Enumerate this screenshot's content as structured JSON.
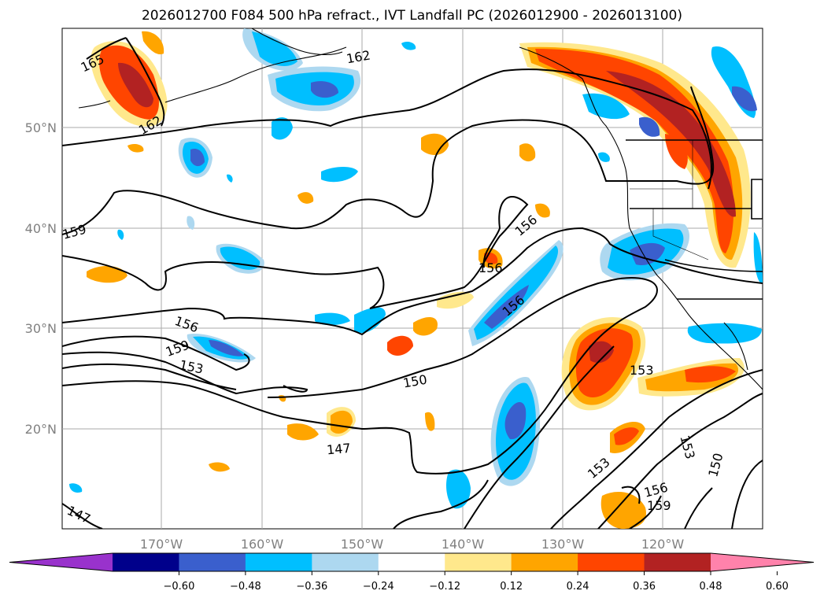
{
  "title": "2026012700 F084 500 hPa refract., IVT Landfall PC (2026012900 - 2026013100)",
  "lat_labels": [
    "50°N",
    "40°N",
    "30°N",
    "20°N"
  ],
  "lon_labels": [
    "170°W",
    "160°W",
    "150°W",
    "140°W",
    "130°W",
    "120°W"
  ],
  "contour_labels": [
    "165",
    "162",
    "162",
    "159",
    "156",
    "156",
    "156",
    "156",
    "159",
    "153",
    "150",
    "147",
    "153",
    "153",
    "153",
    "150",
    "156",
    "159",
    "147"
  ],
  "colorbar": {
    "ticks": [
      "−0.60",
      "−0.48",
      "−0.36",
      "−0.24",
      "−0.12",
      "0.12",
      "0.24",
      "0.36",
      "0.48",
      "0.60"
    ],
    "colors": [
      "#9932cc",
      "#00008b",
      "#3a5fcd",
      "#00bfff",
      "#add8f0",
      "#ffffff",
      "#ffe88c",
      "#ffa500",
      "#ff4500",
      "#b22222",
      "#ff82ab"
    ]
  },
  "colors": {
    "neg_strong": "#3a5fcd",
    "neg_mid": "#00bfff",
    "neg_light": "#add8f0",
    "pos_light": "#ffe88c",
    "pos_mid": "#ffa500",
    "pos_strong": "#ff4500",
    "pos_max": "#b22222",
    "grid": "#aaaaaa"
  }
}
